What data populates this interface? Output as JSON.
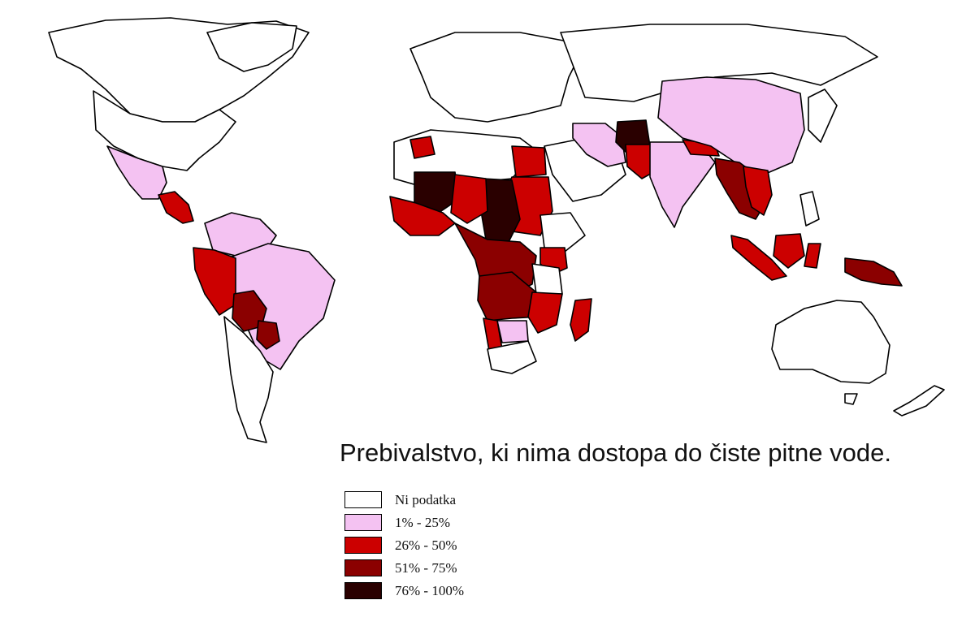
{
  "map": {
    "title": "Prebivalstvo, ki nima dostopa do čiste pitne vode.",
    "colors": {
      "none": "#ffffff",
      "low": "#f4c2f2",
      "mid": "#cc0000",
      "high": "#8b0000",
      "vhigh": "#2a0000"
    },
    "legend": [
      {
        "label": "Ni podatka",
        "color": "#ffffff"
      },
      {
        "label": "1% - 25%",
        "color": "#f4c2f2"
      },
      {
        "label": "26% - 50%",
        "color": "#cc0000"
      },
      {
        "label": "51% - 75%",
        "color": "#8b0000"
      },
      {
        "label": "76% - 100%",
        "color": "#2a0000"
      }
    ]
  }
}
